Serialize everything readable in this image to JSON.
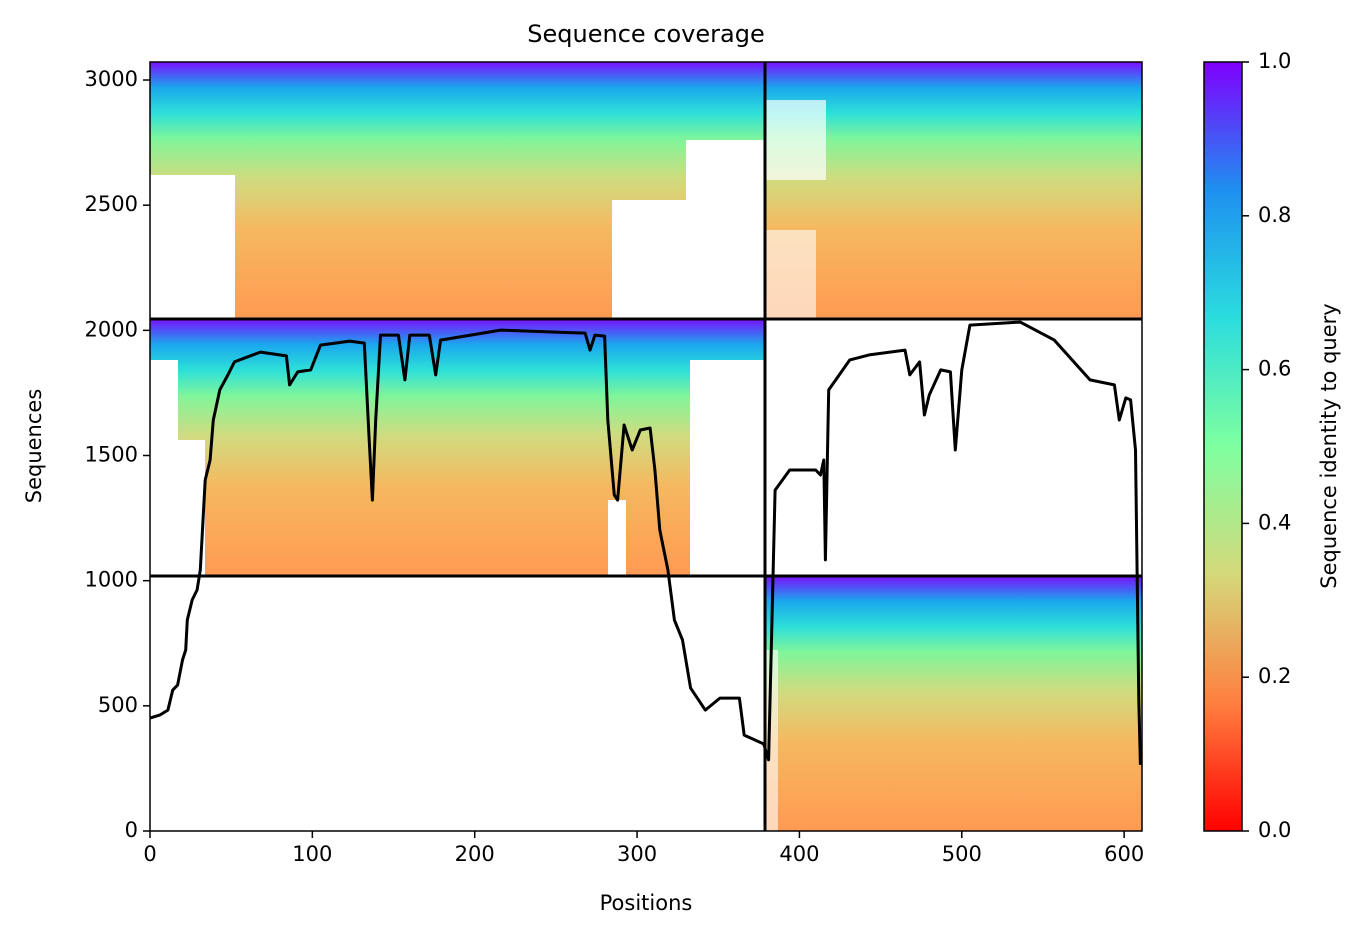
{
  "chart_data": {
    "type": "line",
    "title": "Sequence coverage",
    "xlabel": "Positions",
    "ylabel": "Sequences",
    "color": "#000000",
    "x": [
      0,
      6,
      11,
      14,
      17,
      20,
      22,
      23,
      26,
      29,
      31,
      34,
      37,
      39,
      43,
      48,
      52,
      68,
      84,
      86,
      91,
      99,
      105,
      123,
      132,
      135,
      137,
      139,
      142,
      153,
      157,
      160,
      172,
      176,
      179,
      216,
      250,
      268,
      271,
      274,
      280,
      282,
      286,
      288,
      292,
      297,
      302,
      308,
      311,
      314,
      319,
      323,
      328,
      333,
      342,
      351,
      363,
      366,
      378,
      381,
      385,
      394,
      410,
      413,
      415,
      416,
      418,
      431,
      443,
      465,
      468,
      474,
      477,
      480,
      487,
      493,
      496,
      500,
      505,
      536,
      557,
      579,
      594,
      597,
      601,
      604,
      607,
      609,
      610
    ],
    "values": [
      451,
      463,
      483,
      563,
      583,
      683,
      723,
      843,
      923,
      963,
      1043,
      1402,
      1482,
      1642,
      1762,
      1822,
      1874,
      1913,
      1898,
      1782,
      1834,
      1842,
      1941,
      1957,
      1949,
      1562,
      1322,
      1642,
      1981,
      1981,
      1802,
      1981,
      1981,
      1822,
      1961,
      2001,
      1993,
      1989,
      1921,
      1981,
      1977,
      1642,
      1342,
      1322,
      1622,
      1522,
      1602,
      1610,
      1442,
      1202,
      1043,
      843,
      763,
      571,
      483,
      531,
      531,
      383,
      348,
      284,
      1362,
      1442,
      1442,
      1422,
      1482,
      1083,
      1762,
      1882,
      1902,
      1921,
      1822,
      1874,
      1662,
      1742,
      1842,
      1834,
      1522,
      1842,
      2021,
      2033,
      1961,
      1802,
      1782,
      1642,
      1730,
      1722,
      1522,
      523,
      264
    ],
    "xlim": [
      0,
      611
    ],
    "ylim": [
      0,
      3072
    ],
    "xticks": [
      0,
      100,
      200,
      300,
      400,
      500,
      600
    ],
    "yticks": [
      0,
      500,
      1000,
      1500,
      2000,
      2500,
      3000
    ],
    "colorbar": {
      "label": "Sequence identity to query",
      "lim": [
        0,
        1
      ],
      "ticks": [
        {
          "value": 0,
          "label": "0.0"
        },
        0.2,
        0.4,
        0.6,
        0.8,
        {
          "value": 1,
          "label": "1.0"
        }
      ],
      "colors": [
        "#ff0000",
        "#ff7f40",
        "#d4d87a",
        "#7fffa0",
        "#2adddd",
        "#1e90f0",
        "#8000ff"
      ]
    }
  }
}
